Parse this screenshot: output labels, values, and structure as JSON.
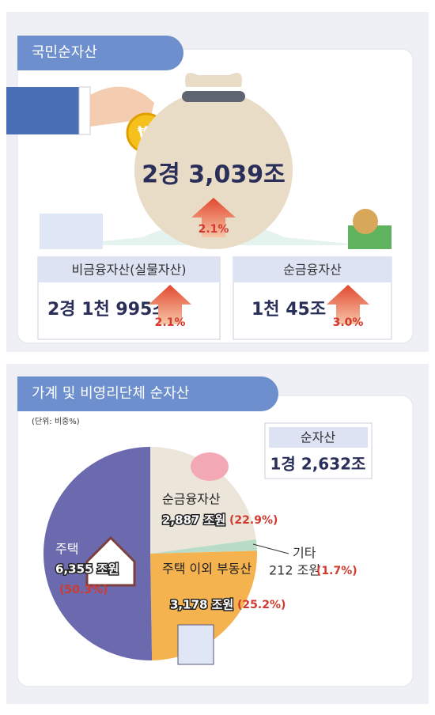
{
  "section1": {
    "title": "국민순자산",
    "total": "2경 3,039조",
    "total_growth": "2.1%",
    "items": [
      {
        "label": "비금융자산(실물자산)",
        "amount": "2경 1천 995조",
        "growth": "2.1%"
      },
      {
        "label": "순금융자산",
        "amount": "1천 45조",
        "growth": "3.0%"
      }
    ]
  },
  "chart_data": {
    "type": "pie",
    "title": "가계 및 비영리단체 순자산",
    "unit_note": "(단위: 비중%)",
    "total_label": "순자산",
    "total_value": "1경 2,632조",
    "categories": [
      "순금융자산",
      "기타",
      "주택 이외 부동산",
      "주택"
    ],
    "values": [
      22.9,
      1.7,
      25.2,
      50.3
    ],
    "value_labels": [
      "(22.9%)",
      "(1.7%)",
      "(25.2%)",
      "(50.3%)"
    ],
    "amounts": [
      "2,887 조원",
      "212 조원",
      "3,178 조원",
      "6,355 조원"
    ],
    "colors": [
      "#ece5da",
      "#b8dcc8",
      "#f5b34f",
      "#6b6aae"
    ]
  }
}
